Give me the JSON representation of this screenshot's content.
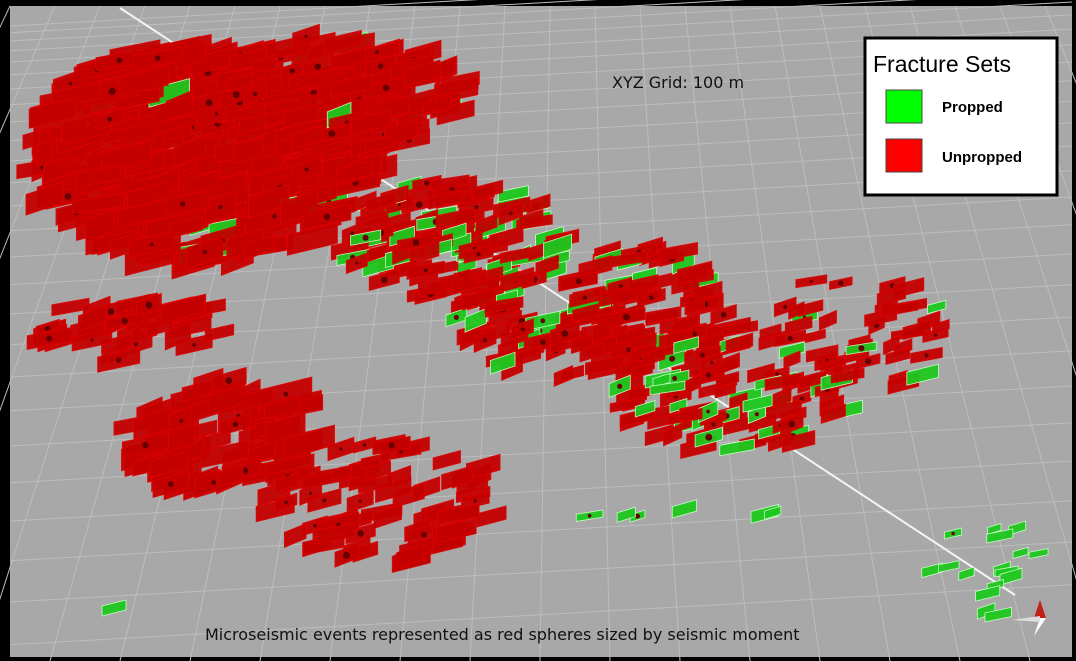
{
  "grid_label": "XYZ Grid: 100 m",
  "legend": {
    "title": "Fracture Sets",
    "items": [
      "Propped",
      "Unpropped"
    ]
  },
  "caption": "Microseismic events represented as red spheres sized by seismic moment"
}
